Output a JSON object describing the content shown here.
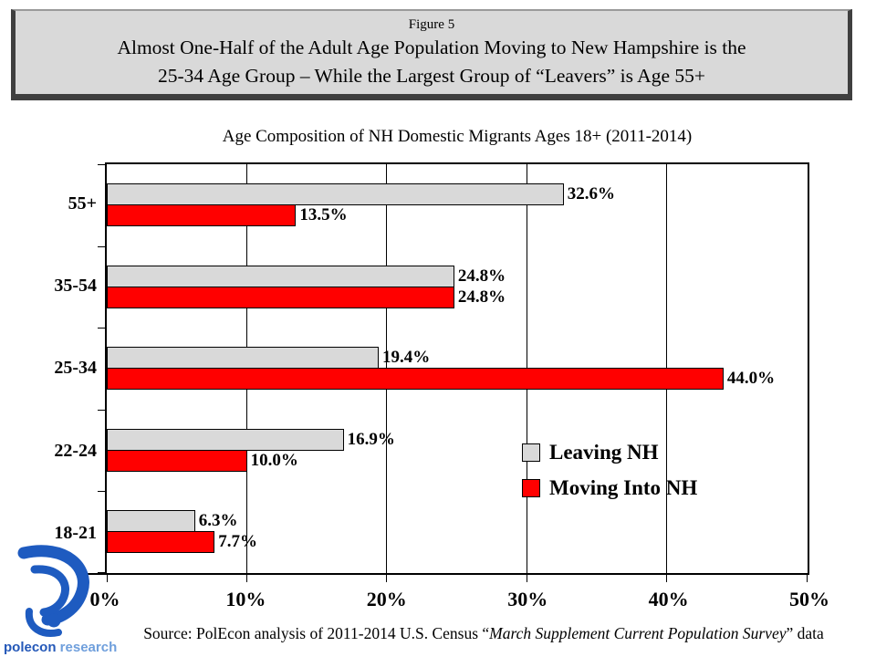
{
  "slide": {
    "title_box": {
      "figure_label": "Figure 5",
      "title_line1": "Almost One-Half of the Adult Age Population Moving to New Hampshire is the",
      "title_line2": "25-34 Age Group – While the Largest Group of “Leavers” is Age 55+"
    },
    "footer": {
      "source_prefix": "Source:  PolEcon analysis  of  2011-2014  U.S. Census “",
      "source_italic": "March Supplement Current Population Survey",
      "source_suffix": "” data"
    },
    "logo": {
      "name_part1": "polecon",
      "name_part2": " research",
      "brand_color": "#1e5bc0"
    }
  },
  "chart_data": {
    "type": "bar",
    "orientation": "horizontal",
    "title": "Age Composition of NH Domestic Migrants Ages 18+ (2011-2014)",
    "categories": [
      "55+",
      "35-54",
      "25-34",
      "22-24",
      "18-21"
    ],
    "series": [
      {
        "name": "Leaving NH",
        "color": "#d9d9d9",
        "values": [
          32.6,
          24.8,
          19.4,
          16.9,
          6.3
        ]
      },
      {
        "name": "Moving Into NH",
        "color": "#ff0000",
        "values": [
          13.5,
          24.8,
          44.0,
          10.0,
          7.7
        ]
      }
    ],
    "value_label_format": "{value}%",
    "xlim": [
      0,
      50
    ],
    "x_tick_labels": [
      "0%",
      "10%",
      "20%",
      "30%",
      "40%",
      "50%"
    ],
    "gridlines": "vertical every 10%",
    "legend_position": "inside lower-right"
  }
}
